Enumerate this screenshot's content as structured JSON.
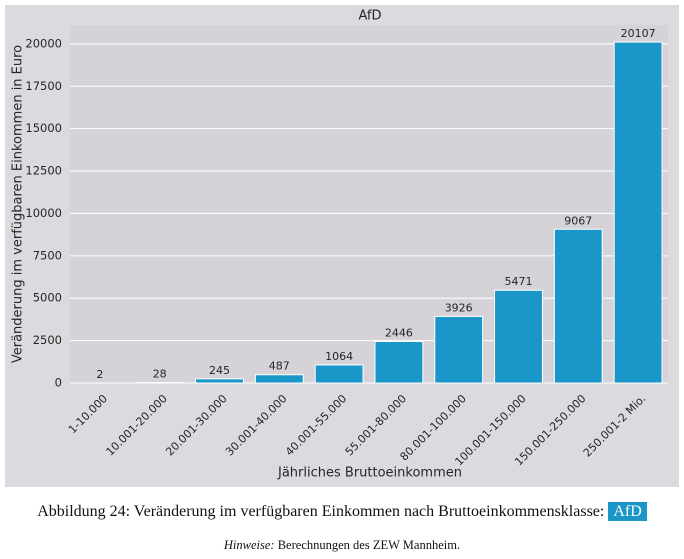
{
  "chart_data": {
    "type": "bar",
    "title": "AfD",
    "categories": [
      "1-10.000",
      "10.001-20.000",
      "20.001-30.000",
      "30.001-40.000",
      "40.001-55.000",
      "55.001-80.000",
      "80.001-100.000",
      "100.001-150.000",
      "150.001-250.000",
      "250.001-2 Mio."
    ],
    "values": [
      2,
      28,
      245,
      487,
      1064,
      2446,
      3926,
      5471,
      9067,
      20107
    ],
    "color": "#1a96c8",
    "ylim": [
      0,
      21113
    ],
    "yticks": [
      0,
      2500,
      5000,
      7500,
      10000,
      12500,
      15000,
      17500,
      20000
    ],
    "grid": true,
    "x_label": "Jährliches Bruttoeinkommen",
    "y_label": "Veränderung im verfügbaren Einkommen in Euro"
  },
  "caption": {
    "text": "Abbildung 24: Veränderung im verfügbaren Einkommen nach Bruttoeinkommensklasse:",
    "tag": "AfD"
  },
  "note": {
    "label": "Hinweise:",
    "text": "Berechnungen des ZEW Mannheim."
  }
}
